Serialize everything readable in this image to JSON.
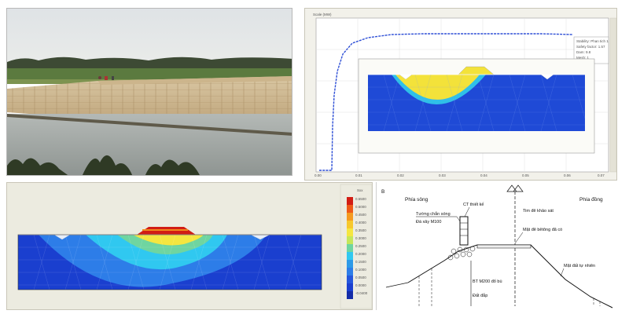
{
  "graph": {
    "title": "Scale (MW)",
    "legend_lines": [
      "Stability: Phan tich 1",
      "Safety factor: 1.57",
      "Dam: 9.8",
      "Mesh: 1"
    ],
    "x_ticks": [
      "0.00",
      "0.01",
      "0.02",
      "0.03",
      "0.04",
      "0.05",
      "0.06",
      "0.07"
    ]
  },
  "fem": {
    "scale_header": "Sxx",
    "scale_values": [
      "0.5500",
      "0.5000",
      "0.4500",
      "0.4000",
      "0.3500",
      "0.3000",
      "0.2500",
      "0.2000",
      "0.1500",
      "0.1000",
      "0.0500",
      "0.0000",
      "-0.0400"
    ]
  },
  "section": {
    "ref_symbol": "B",
    "left_side": "Phía sông",
    "right_side": "Phía đồng",
    "wall_label": "Tường chắn sóng",
    "wall_material": "Đá xây M100",
    "design_crest": "CT thiết kế",
    "dike_axis": "Tim đê khảo sát",
    "old_concrete": "Mặt đê bêtông đã có",
    "natural_ground": "Mặt đất tự nhiên",
    "bt_layer": "BT M200 đổ bù",
    "fill_soil": "Đất đắp"
  },
  "colors": {
    "fem_blue": "#1a3fcf",
    "fem_cyan": "#30c8f0",
    "fem_yellow": "#f5e640",
    "fem_red": "#d21d14",
    "graph_curve": "#2e4fd6"
  }
}
